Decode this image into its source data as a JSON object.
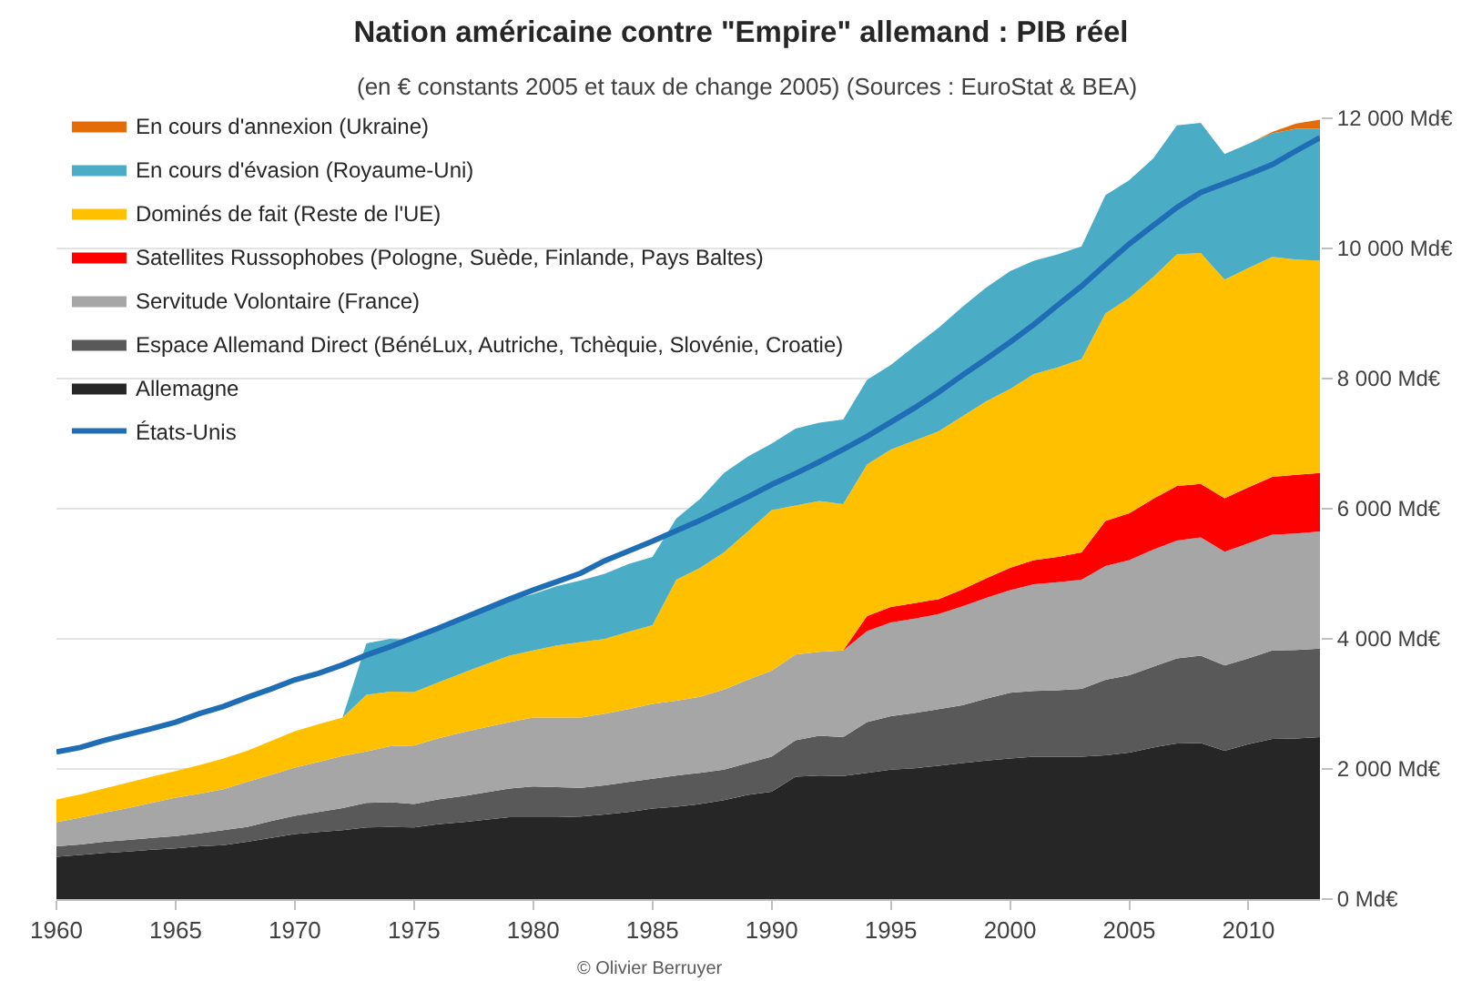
{
  "chart_data": {
    "type": "area",
    "title": "Nation américaine contre \"Empire\" allemand : PIB réel",
    "subtitle": "(en € constants 2005 et taux de change 2005) (Sources : EuroStat & BEA)",
    "annotations": [
      "© Olivier Berruyer"
    ],
    "x": [
      1960,
      1961,
      1962,
      1963,
      1964,
      1965,
      1966,
      1967,
      1968,
      1969,
      1970,
      1971,
      1972,
      1973,
      1974,
      1975,
      1976,
      1977,
      1978,
      1979,
      1980,
      1981,
      1982,
      1983,
      1984,
      1985,
      1986,
      1987,
      1988,
      1989,
      1990,
      1991,
      1992,
      1993,
      1994,
      1995,
      1996,
      1997,
      1998,
      1999,
      2000,
      2001,
      2002,
      2003,
      2004,
      2005,
      2006,
      2007,
      2008,
      2009,
      2010,
      2011,
      2012,
      2013
    ],
    "xlim": [
      1960,
      2013
    ],
    "xticks": [
      1960,
      1965,
      1970,
      1975,
      1980,
      1985,
      1990,
      1995,
      2000,
      2005,
      2010
    ],
    "ylim": [
      0,
      12000
    ],
    "yticks": [
      {
        "value": 0,
        "label": "0 Md€"
      },
      {
        "value": 2000,
        "label": "2 000 Md€"
      },
      {
        "value": 4000,
        "label": "4 000 Md€"
      },
      {
        "value": 6000,
        "label": "6 000 Md€"
      },
      {
        "value": 8000,
        "label": "8 000 Md€"
      },
      {
        "value": 10000,
        "label": "10 000 Md€"
      },
      {
        "value": 12000,
        "label": "12 000 Md€"
      }
    ],
    "stacked": true,
    "grid": "y",
    "legend": "top left",
    "series": [
      {
        "name": "Allemagne",
        "color": "#262626",
        "values": [
          650,
          680,
          710,
          730,
          760,
          780,
          810,
          830,
          880,
          940,
          1000,
          1030,
          1060,
          1100,
          1110,
          1100,
          1150,
          1180,
          1220,
          1260,
          1260,
          1260,
          1270,
          1300,
          1340,
          1390,
          1420,
          1460,
          1520,
          1600,
          1650,
          1880,
          1900,
          1890,
          1940,
          1990,
          2010,
          2050,
          2090,
          2130,
          2160,
          2190,
          2190,
          2190,
          2210,
          2250,
          2330,
          2390,
          2400,
          2280,
          2380,
          2460,
          2470,
          2490
        ]
      },
      {
        "name": "Espace Allemand Direct (BénéLux, Autriche, Tchèquie, Slovénie, Croatie)",
        "color": "#595959",
        "values": [
          160,
          160,
          170,
          180,
          180,
          190,
          200,
          230,
          230,
          260,
          280,
          310,
          340,
          380,
          380,
          360,
          380,
          400,
          420,
          440,
          470,
          460,
          440,
          450,
          460,
          460,
          480,
          480,
          470,
          490,
          540,
          560,
          610,
          600,
          780,
          820,
          850,
          870,
          890,
          950,
          1010,
          1010,
          1020,
          1040,
          1160,
          1190,
          1240,
          1310,
          1340,
          1310,
          1320,
          1360,
          1360,
          1360
        ]
      },
      {
        "name": "Servitude Volontaire (France)",
        "color": "#a6a6a6",
        "values": [
          370,
          410,
          450,
          490,
          540,
          590,
          610,
          630,
          690,
          710,
          740,
          770,
          800,
          790,
          860,
          900,
          940,
          980,
          1000,
          1020,
          1060,
          1070,
          1080,
          1100,
          1120,
          1150,
          1150,
          1170,
          1230,
          1280,
          1320,
          1320,
          1290,
          1330,
          1400,
          1440,
          1450,
          1460,
          1520,
          1550,
          1580,
          1640,
          1660,
          1680,
          1750,
          1770,
          1800,
          1810,
          1820,
          1750,
          1770,
          1780,
          1790,
          1800
        ]
      },
      {
        "name": "Satellites Russophobes (Pologne, Suède, Finlande, Pays Baltes)",
        "color": "#ff0000",
        "values": [
          0,
          0,
          0,
          0,
          0,
          0,
          0,
          0,
          0,
          0,
          0,
          0,
          0,
          0,
          0,
          0,
          0,
          0,
          0,
          0,
          0,
          0,
          0,
          0,
          0,
          0,
          0,
          0,
          0,
          0,
          0,
          0,
          0,
          0,
          230,
          240,
          240,
          230,
          260,
          300,
          340,
          370,
          390,
          420,
          690,
          720,
          780,
          840,
          820,
          820,
          860,
          890,
          900,
          900
        ]
      },
      {
        "name": "Dominés de fait (Reste de l'UE)",
        "color": "#ffc000",
        "values": [
          350,
          360,
          370,
          390,
          400,
          410,
          440,
          470,
          480,
          520,
          560,
          580,
          590,
          870,
          840,
          820,
          860,
          910,
          970,
          1020,
          1030,
          1110,
          1160,
          1150,
          1190,
          1210,
          1860,
          1980,
          2110,
          2280,
          2470,
          2290,
          2320,
          2250,
          2330,
          2420,
          2500,
          2580,
          2660,
          2720,
          2750,
          2860,
          2910,
          2970,
          3190,
          3310,
          3410,
          3560,
          3550,
          3360,
          3370,
          3380,
          3310,
          3260
        ]
      },
      {
        "name": "En cours d'évasion (Royaume-Uni)",
        "color": "#4bacc6",
        "values": [
          0,
          0,
          0,
          0,
          0,
          0,
          0,
          0,
          0,
          0,
          0,
          0,
          0,
          790,
          810,
          800,
          820,
          830,
          840,
          850,
          870,
          910,
          950,
          1000,
          1040,
          1050,
          940,
          1060,
          1220,
          1150,
          1020,
          1180,
          1200,
          1300,
          1300,
          1300,
          1450,
          1590,
          1680,
          1750,
          1810,
          1740,
          1740,
          1730,
          1820,
          1810,
          1820,
          1980,
          2000,
          1930,
          1910,
          1900,
          2010,
          2030
        ]
      },
      {
        "name": "En cours d'annexion (Ukraine)",
        "color": "#e36c09",
        "values": [
          0,
          0,
          0,
          0,
          0,
          0,
          0,
          0,
          0,
          0,
          0,
          0,
          0,
          0,
          0,
          0,
          0,
          0,
          0,
          0,
          0,
          0,
          0,
          0,
          0,
          0,
          0,
          0,
          0,
          0,
          0,
          0,
          0,
          0,
          0,
          0,
          0,
          0,
          0,
          0,
          0,
          0,
          0,
          0,
          0,
          0,
          0,
          0,
          0,
          0,
          0,
          20,
          80,
          140
        ]
      },
      {
        "name": "États-Unis",
        "type": "line",
        "color": "#1f6db4",
        "values": [
          2260,
          2330,
          2440,
          2530,
          2620,
          2720,
          2850,
          2960,
          3100,
          3230,
          3370,
          3470,
          3600,
          3750,
          3880,
          4020,
          4160,
          4310,
          4460,
          4610,
          4750,
          4880,
          5010,
          5200,
          5350,
          5500,
          5660,
          5820,
          6000,
          6180,
          6370,
          6540,
          6720,
          6910,
          7110,
          7330,
          7550,
          7790,
          8050,
          8300,
          8560,
          8830,
          9130,
          9420,
          9750,
          10070,
          10350,
          10630,
          10860,
          11000,
          11140,
          11290,
          11500,
          11700
        ]
      }
    ]
  }
}
